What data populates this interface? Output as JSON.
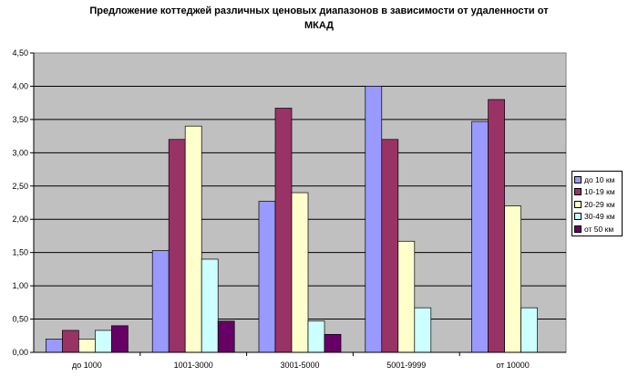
{
  "chart_data": {
    "type": "bar",
    "title": "Предложение коттеджей различных ценовых диапазонов в зависимости от удаленности от МКАД",
    "categories": [
      "до 1000",
      "1001-3000",
      "3001-5000",
      "5001-9999",
      "от 10000"
    ],
    "y_ticks": [
      "0,00",
      "0,50",
      "1,00",
      "1,50",
      "2,00",
      "2,50",
      "3,00",
      "3,50",
      "4,00",
      "4,50"
    ],
    "ylim": [
      0,
      4.5
    ],
    "grid": true,
    "legend_position": "right",
    "series": [
      {
        "name": "до 10 км",
        "color": "#9999ff",
        "values": [
          0.2,
          1.53,
          2.27,
          4.0,
          3.47
        ]
      },
      {
        "name": "10-19 км",
        "color": "#993366",
        "values": [
          0.33,
          3.2,
          3.67,
          3.2,
          3.8
        ]
      },
      {
        "name": "20-29 км",
        "color": "#ffffcc",
        "values": [
          0.2,
          3.4,
          2.4,
          1.67,
          2.2
        ]
      },
      {
        "name": "30-49 км",
        "color": "#ccffff",
        "values": [
          0.33,
          1.4,
          0.47,
          0.67,
          0.67
        ]
      },
      {
        "name": "от 50 км",
        "color": "#660066",
        "values": [
          0.4,
          0.47,
          0.27,
          0,
          0
        ]
      }
    ]
  }
}
